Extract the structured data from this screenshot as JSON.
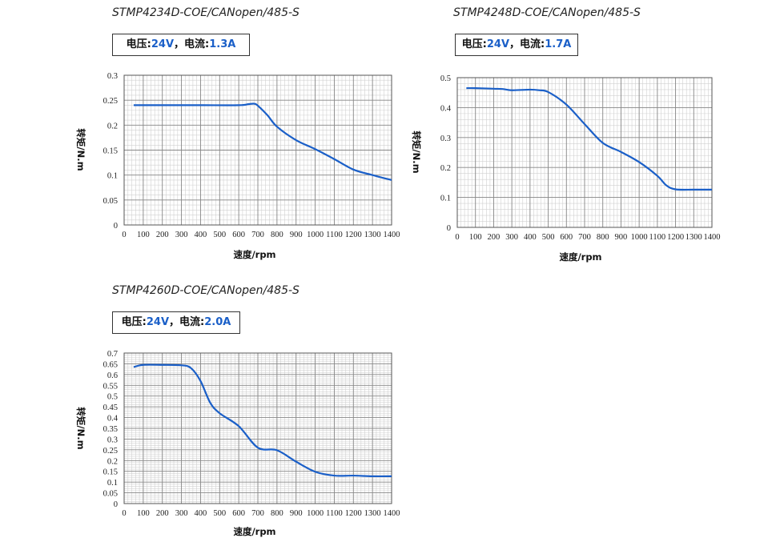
{
  "spec_labels": {
    "voltage": "电压:",
    "current": "电流:",
    "sep": "，"
  },
  "colors": {
    "curve": "#1a5fc8",
    "grid_major": "#888888",
    "grid_minor": "#d0d0d0"
  },
  "chart_data": [
    {
      "type": "line",
      "title": "STMP4234D-COE/CANopen/485-S",
      "voltage": "24V",
      "current": "1.3A",
      "xlabel": "速度/rpm",
      "ylabel": "转矩/N.m",
      "xlim": [
        0,
        1400
      ],
      "ylim": [
        0,
        0.3
      ],
      "xticks": [
        0,
        100,
        200,
        300,
        400,
        500,
        600,
        700,
        800,
        900,
        1000,
        1100,
        1200,
        1300,
        1400
      ],
      "yticks": [
        0,
        0.05,
        0.1,
        0.15,
        0.2,
        0.25,
        0.3
      ],
      "ytick_labels": [
        "0",
        "0.05",
        "0.1",
        "0.15",
        "0.2",
        "0.25",
        "0.3"
      ],
      "grid": true,
      "series": [
        {
          "x": [
            50,
            200,
            400,
            600,
            650,
            680,
            700,
            750,
            800,
            900,
            1000,
            1100,
            1200,
            1300,
            1400
          ],
          "y": [
            0.24,
            0.24,
            0.24,
            0.24,
            0.242,
            0.243,
            0.239,
            0.22,
            0.197,
            0.17,
            0.152,
            0.132,
            0.111,
            0.1,
            0.09
          ]
        }
      ]
    },
    {
      "type": "line",
      "title": "STMP4248D-COE/CANopen/485-S",
      "voltage": "24V",
      "current": "1.7A",
      "xlabel": "速度/rpm",
      "ylabel": "转矩/N.m",
      "xlim": [
        0,
        1400
      ],
      "ylim": [
        0,
        0.5
      ],
      "xticks": [
        0,
        100,
        200,
        300,
        400,
        500,
        600,
        700,
        800,
        900,
        1000,
        1100,
        1200,
        1300,
        1400
      ],
      "yticks": [
        0,
        0.1,
        0.2,
        0.3,
        0.4,
        0.5
      ],
      "ytick_labels": [
        "0",
        "0.1",
        "0.2",
        "0.3",
        "0.4",
        "0.5"
      ],
      "grid": true,
      "series": [
        {
          "x": [
            50,
            100,
            200,
            250,
            300,
            400,
            450,
            500,
            600,
            700,
            800,
            900,
            1000,
            1100,
            1150,
            1200,
            1300,
            1400
          ],
          "y": [
            0.465,
            0.465,
            0.463,
            0.462,
            0.458,
            0.46,
            0.458,
            0.452,
            0.41,
            0.345,
            0.282,
            0.252,
            0.218,
            0.172,
            0.14,
            0.127,
            0.126,
            0.126
          ]
        }
      ]
    },
    {
      "type": "line",
      "title": "STMP4260D-COE/CANopen/485-S",
      "voltage": "24V",
      "current": "2.0A",
      "xlabel": "速度/rpm",
      "ylabel": "转矩/N.m",
      "xlim": [
        0,
        1400
      ],
      "ylim": [
        0,
        0.7
      ],
      "xticks": [
        0,
        100,
        200,
        300,
        400,
        500,
        600,
        700,
        800,
        900,
        1000,
        1100,
        1200,
        1300,
        1400
      ],
      "yticks": [
        0,
        0.05,
        0.1,
        0.15,
        0.2,
        0.25,
        0.3,
        0.35,
        0.4,
        0.45,
        0.5,
        0.55,
        0.6,
        0.65,
        0.7
      ],
      "ytick_labels": [
        "0",
        "0.05",
        "0.1",
        "0.15",
        "0.2",
        "0.25",
        "0.3",
        "0.35",
        "0.4",
        "0.45",
        "0.5",
        "0.55",
        "0.6",
        "0.65",
        "0.7"
      ],
      "grid": true,
      "series": [
        {
          "x": [
            50,
            100,
            200,
            300,
            350,
            400,
            450,
            500,
            600,
            700,
            800,
            900,
            1000,
            1100,
            1200,
            1300,
            1400
          ],
          "y": [
            0.635,
            0.645,
            0.645,
            0.643,
            0.63,
            0.57,
            0.47,
            0.42,
            0.36,
            0.26,
            0.248,
            0.195,
            0.148,
            0.13,
            0.13,
            0.127,
            0.127
          ]
        }
      ]
    }
  ]
}
